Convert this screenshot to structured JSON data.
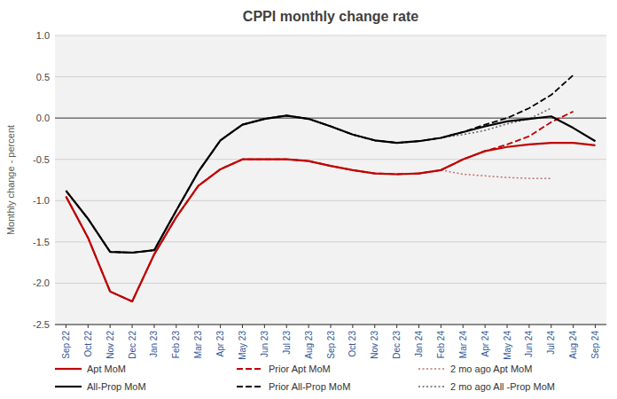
{
  "chart_data": {
    "type": "line",
    "title": "CPPI  monthly  change rate",
    "y_label": "Monthly change - percent",
    "categories": [
      "Sep 22",
      "Oct 22",
      "Nov 22",
      "Dec 22",
      "Jan 23",
      "Feb 23",
      "Mar 23",
      "Apr 23",
      "May 23",
      "Jun 23",
      "Jul 23",
      "Aug 23",
      "Sep 23",
      "Oct 23",
      "Nov 23",
      "Dec 23",
      "Jan 24",
      "Feb 24",
      "Mar 24",
      "Apr 24",
      "May 24",
      "Jun 24",
      "Jul 24",
      "Aug 24",
      "Sep 24"
    ],
    "series": [
      {
        "name": "Apt MoM",
        "color": "#c00000",
        "line_style": "solid",
        "values": [
          -0.95,
          -1.45,
          -2.1,
          -2.22,
          -1.65,
          -1.2,
          -0.82,
          -0.62,
          -0.5,
          -0.5,
          -0.5,
          -0.52,
          -0.58,
          -0.63,
          -0.67,
          -0.68,
          -0.67,
          -0.63,
          -0.5,
          -0.4,
          -0.35,
          -0.32,
          -0.3,
          -0.3,
          -0.33
        ]
      },
      {
        "name": "Prior Apt MoM",
        "color": "#c00000",
        "line_style": "dashed",
        "values": [
          -0.95,
          -1.45,
          -2.1,
          -2.22,
          -1.65,
          -1.2,
          -0.82,
          -0.62,
          -0.5,
          -0.5,
          -0.5,
          -0.52,
          -0.58,
          -0.63,
          -0.67,
          -0.68,
          -0.67,
          -0.63,
          -0.5,
          -0.4,
          -0.32,
          -0.22,
          -0.05,
          0.08,
          null
        ]
      },
      {
        "name": "2 mo ago Apt MoM",
        "color": "#c07070",
        "line_style": "dotted",
        "values": [
          -0.95,
          -1.45,
          -2.1,
          -2.22,
          -1.65,
          -1.2,
          -0.82,
          -0.62,
          -0.5,
          -0.5,
          -0.5,
          -0.52,
          -0.58,
          -0.63,
          -0.67,
          -0.68,
          -0.67,
          -0.63,
          -0.68,
          -0.7,
          -0.72,
          -0.73,
          -0.73,
          null,
          null
        ]
      },
      {
        "name": "All-Prop MoM",
        "color": "#000000",
        "line_style": "solid",
        "values": [
          -0.88,
          -1.22,
          -1.62,
          -1.63,
          -1.6,
          -1.12,
          -0.65,
          -0.27,
          -0.08,
          -0.01,
          0.03,
          -0.01,
          -0.1,
          -0.2,
          -0.27,
          -0.3,
          -0.28,
          -0.24,
          -0.17,
          -0.1,
          -0.04,
          -0.01,
          0.02,
          -0.12,
          -0.28
        ]
      },
      {
        "name": "Prior All-Prop MoM",
        "color": "#000000",
        "line_style": "dashed",
        "values": [
          -0.88,
          -1.22,
          -1.62,
          -1.63,
          -1.6,
          -1.12,
          -0.65,
          -0.27,
          -0.08,
          -0.01,
          0.03,
          -0.01,
          -0.1,
          -0.2,
          -0.27,
          -0.3,
          -0.28,
          -0.24,
          -0.17,
          -0.08,
          0.0,
          0.12,
          0.28,
          0.52,
          null
        ]
      },
      {
        "name": "2 mo ago All -Prop MoM",
        "color": "#606060",
        "line_style": "dotted",
        "values": [
          -0.88,
          -1.22,
          -1.62,
          -1.63,
          -1.6,
          -1.12,
          -0.65,
          -0.27,
          -0.08,
          -0.01,
          0.03,
          -0.01,
          -0.1,
          -0.2,
          -0.27,
          -0.3,
          -0.28,
          -0.24,
          -0.2,
          -0.15,
          -0.07,
          -0.01,
          0.12,
          null,
          null
        ]
      }
    ],
    "ylim": [
      -2.5,
      1.0
    ],
    "yticks": [
      -2.5,
      {
        "value": -2.0,
        "label": "-2.0"
      },
      -1.5,
      {
        "value": -1.0,
        "label": "-1.0"
      },
      -0.5,
      {
        "value": 0.0,
        "label": "0.0"
      },
      0.5,
      {
        "value": 1.0,
        "label": "1.0"
      }
    ],
    "grid": true,
    "legend": "bottom"
  }
}
